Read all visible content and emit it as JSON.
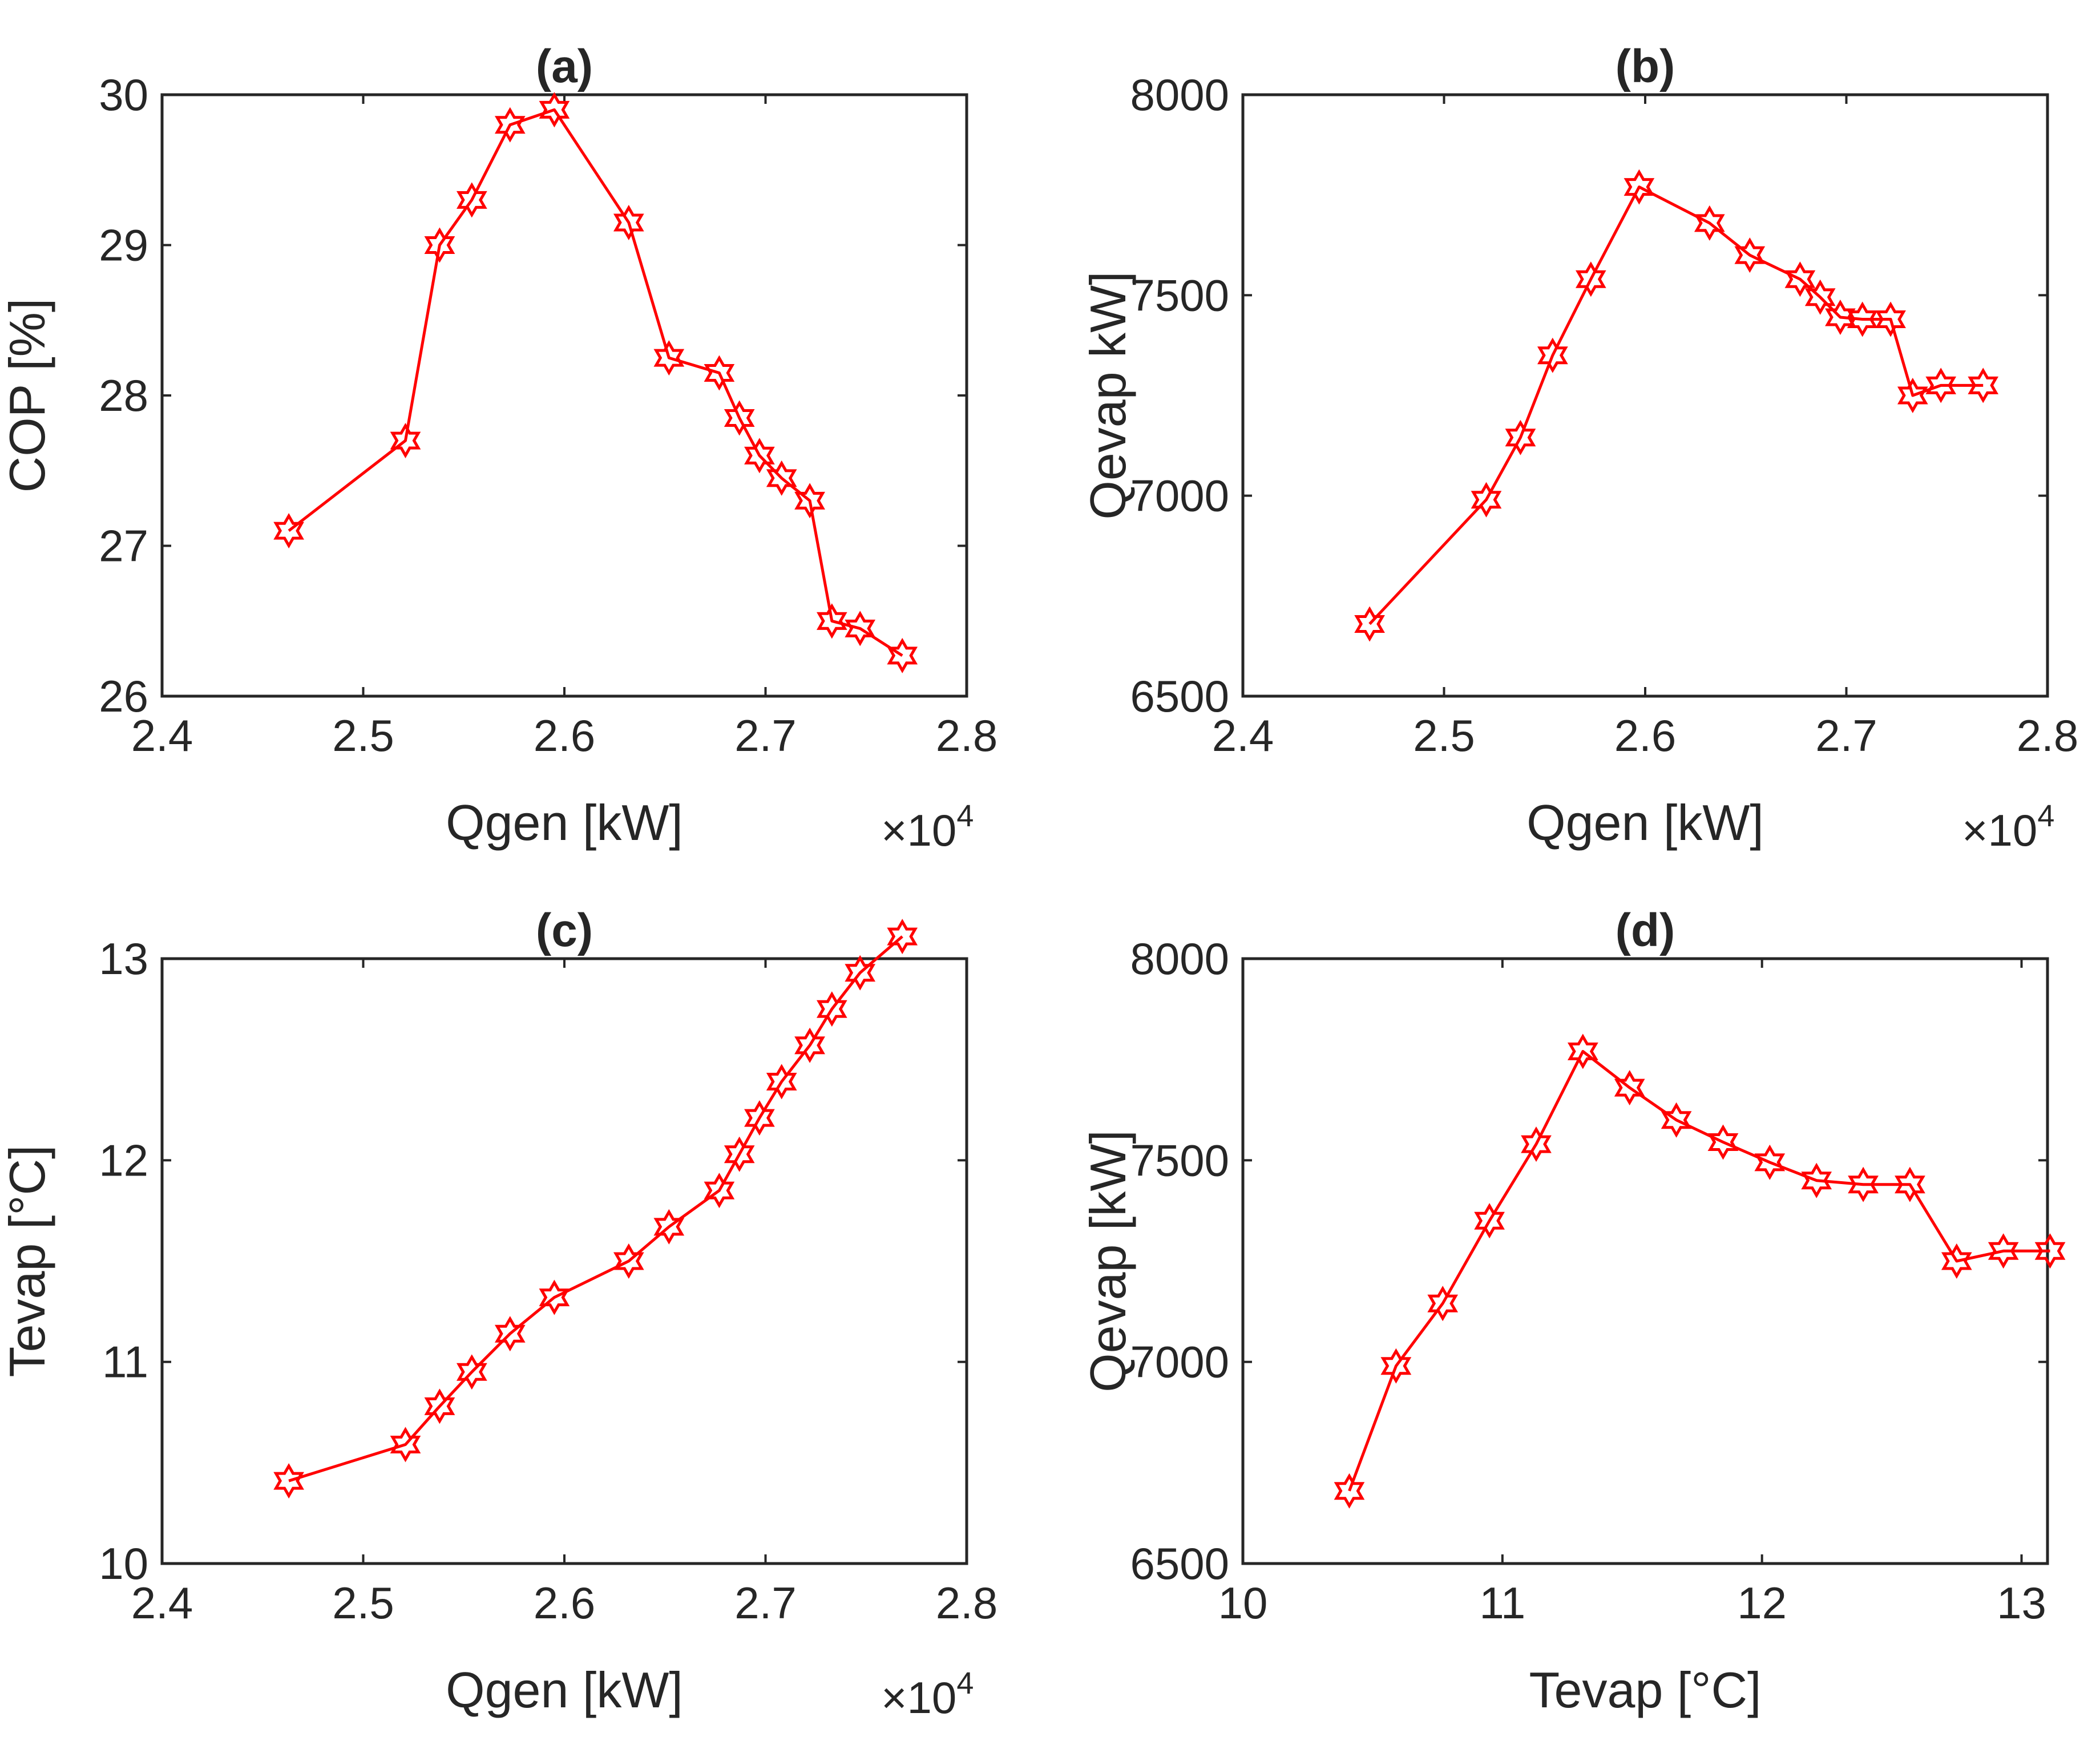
{
  "colors": {
    "series": "#ff0000",
    "axes": "#262626",
    "background": "#ffffff"
  },
  "chart_data": [
    {
      "id": "a",
      "type": "line",
      "title": "(a)",
      "xlabel": "Qgen [kW]",
      "ylabel": "COP [%]",
      "x_exponent_label": "×10",
      "x_exponent_power": "4",
      "xlim": [
        2.4,
        2.8
      ],
      "ylim": [
        26,
        30
      ],
      "xticks": [
        2.4,
        2.5,
        2.6,
        2.7,
        2.8
      ],
      "xtick_labels": [
        "2.4",
        "2.5",
        "2.6",
        "2.7",
        "2.8"
      ],
      "yticks": [
        26,
        27,
        28,
        29,
        30
      ],
      "ytick_labels": [
        "26",
        "27",
        "28",
        "29",
        "30"
      ],
      "grid": false,
      "marker": "hexagram",
      "x": [
        2.463,
        2.521,
        2.538,
        2.554,
        2.573,
        2.595,
        2.632,
        2.652,
        2.677,
        2.687,
        2.697,
        2.708,
        2.722,
        2.733,
        2.747,
        2.768
      ],
      "y": [
        27.1,
        27.7,
        29.0,
        29.3,
        29.8,
        29.9,
        29.15,
        28.25,
        28.15,
        27.85,
        27.6,
        27.45,
        27.3,
        26.5,
        26.45,
        26.27
      ]
    },
    {
      "id": "b",
      "type": "line",
      "title": "(b)",
      "xlabel": "Qgen [kW]",
      "ylabel": "Qevap kW]",
      "x_exponent_label": "×10",
      "x_exponent_power": "4",
      "xlim": [
        2.4,
        2.8
      ],
      "ylim": [
        6500,
        8000
      ],
      "xticks": [
        2.4,
        2.5,
        2.6,
        2.7,
        2.8
      ],
      "xtick_labels": [
        "2.4",
        "2.5",
        "2.6",
        "2.7",
        "2.8"
      ],
      "yticks": [
        6500,
        7000,
        7500,
        8000
      ],
      "ytick_labels": [
        "6500",
        "7000",
        "7500",
        "8000"
      ],
      "grid": false,
      "marker": "hexagram",
      "x": [
        2.463,
        2.521,
        2.538,
        2.554,
        2.573,
        2.597,
        2.632,
        2.652,
        2.677,
        2.687,
        2.697,
        2.708,
        2.722,
        2.733,
        2.747,
        2.768
      ],
      "y": [
        6680,
        6990,
        7145,
        7350,
        7540,
        7770,
        7680,
        7600,
        7540,
        7495,
        7445,
        7440,
        7440,
        7250,
        7275,
        7275
      ]
    },
    {
      "id": "c",
      "type": "line",
      "title": "(c)",
      "xlabel": "Qgen [kW]",
      "ylabel": "Tevap [°C]",
      "x_exponent_label": "×10",
      "x_exponent_power": "4",
      "xlim": [
        2.4,
        2.8
      ],
      "ylim": [
        10,
        13
      ],
      "xticks": [
        2.4,
        2.5,
        2.6,
        2.7,
        2.8
      ],
      "xtick_labels": [
        "2.4",
        "2.5",
        "2.6",
        "2.7",
        "2.8"
      ],
      "yticks": [
        10,
        11,
        12,
        13
      ],
      "ytick_labels": [
        "10",
        "11",
        "12",
        "13"
      ],
      "grid": false,
      "marker": "hexagram",
      "x": [
        2.463,
        2.521,
        2.538,
        2.554,
        2.573,
        2.595,
        2.632,
        2.652,
        2.677,
        2.687,
        2.697,
        2.708,
        2.722,
        2.733,
        2.747,
        2.768
      ],
      "y": [
        10.41,
        10.59,
        10.78,
        10.95,
        11.14,
        11.32,
        11.5,
        11.67,
        11.85,
        12.03,
        12.21,
        12.39,
        12.57,
        12.75,
        12.93,
        13.11
      ]
    },
    {
      "id": "d",
      "type": "line",
      "title": "(d)",
      "xlabel": "Tevap [°C]",
      "ylabel": "Qevap [kW]",
      "x_exponent_label": "",
      "x_exponent_power": "",
      "xlim": [
        10,
        13.1
      ],
      "ylim": [
        6500,
        8000
      ],
      "xticks": [
        10,
        11,
        12,
        13
      ],
      "xtick_labels": [
        "10",
        "11",
        "12",
        "13"
      ],
      "yticks": [
        6500,
        7000,
        7500,
        8000
      ],
      "ytick_labels": [
        "6500",
        "7000",
        "7500",
        "8000"
      ],
      "grid": false,
      "marker": "hexagram",
      "x": [
        10.41,
        10.59,
        10.77,
        10.95,
        11.13,
        11.31,
        11.49,
        11.67,
        11.85,
        12.03,
        12.21,
        12.39,
        12.57,
        12.75,
        12.93,
        13.11
      ],
      "y": [
        6680,
        6990,
        7145,
        7350,
        7540,
        7770,
        7680,
        7600,
        7545,
        7495,
        7450,
        7440,
        7440,
        7250,
        7275,
        7275
      ]
    }
  ]
}
